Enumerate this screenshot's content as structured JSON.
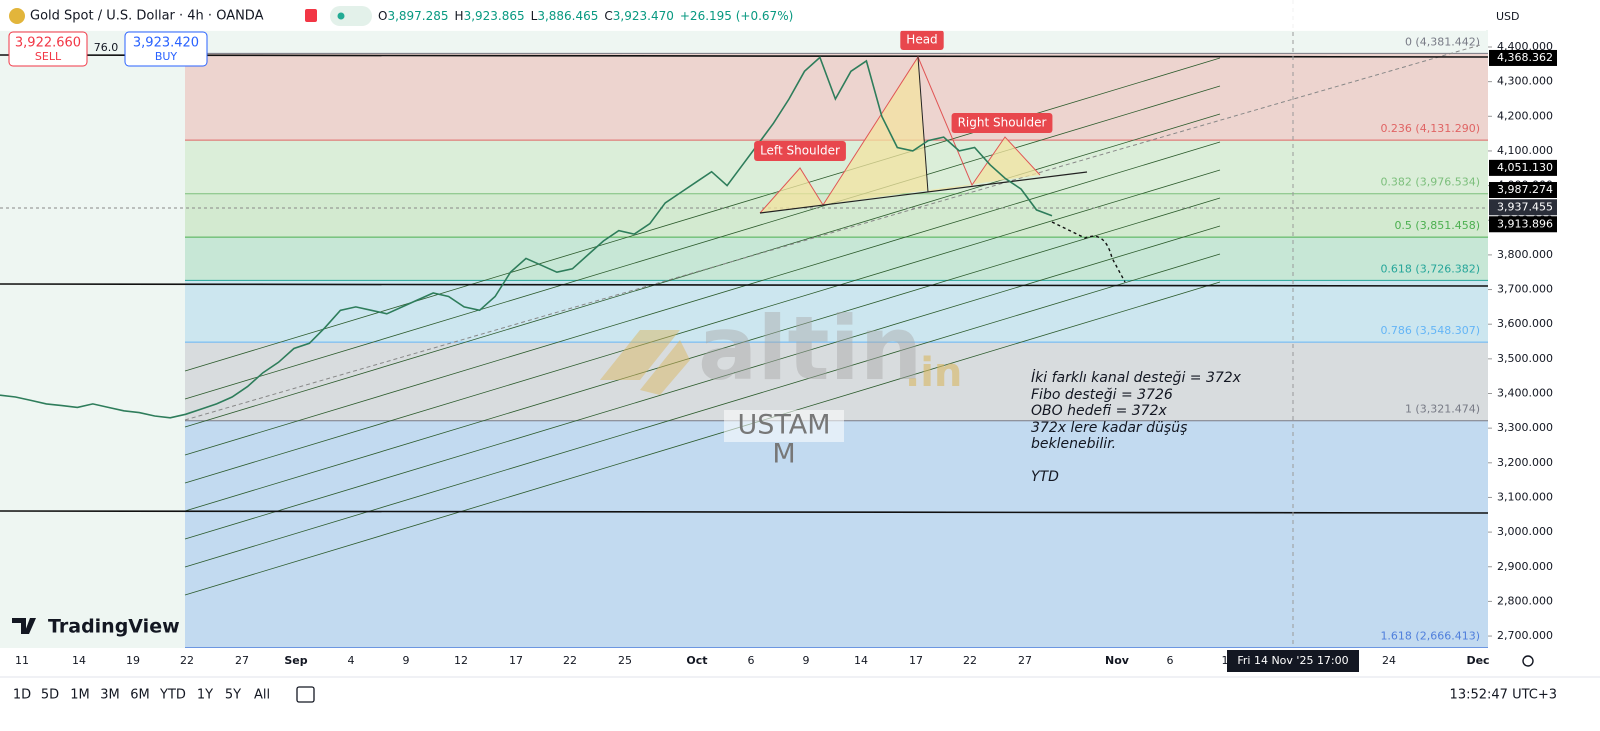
{
  "header": {
    "symbol": "Gold Spot / U.S. Dollar · 4h · OANDA",
    "ohlc": [
      {
        "label": "O",
        "value": "3,897.285"
      },
      {
        "label": "H",
        "value": "3,923.865"
      },
      {
        "label": "L",
        "value": "3,886.465"
      },
      {
        "label": "C",
        "value": "3,923.470"
      }
    ],
    "change": "+26.195 (+0.67%)"
  },
  "trade": {
    "sell_price": "3,922.660",
    "sell": "SELL",
    "spread": "76.0",
    "buy_price": "3,923.420",
    "buy": "BUY"
  },
  "currency": "USD",
  "price_axis": [
    {
      "value": 4400,
      "label": "4,400.000"
    },
    {
      "value": 4300,
      "label": "4,300.000"
    },
    {
      "value": 4200,
      "label": "4,200.000"
    },
    {
      "value": 4100,
      "label": "4,100.000"
    },
    {
      "value": 4000,
      "label": "4,000.000"
    },
    {
      "value": 3900,
      "label": "3,900.000"
    },
    {
      "value": 3800,
      "label": "3,800.000"
    },
    {
      "value": 3700,
      "label": "3,700.000"
    },
    {
      "value": 3600,
      "label": "3,600.000"
    },
    {
      "value": 3500,
      "label": "3,500.000"
    },
    {
      "value": 3400,
      "label": "3,400.000"
    },
    {
      "value": 3300,
      "label": "3,300.000"
    },
    {
      "value": 3200,
      "label": "3,200.000"
    },
    {
      "value": 3100,
      "label": "3,100.000"
    },
    {
      "value": 3000,
      "label": "3,000.000"
    },
    {
      "value": 2900,
      "label": "2,900.000"
    },
    {
      "value": 2800,
      "label": "2,800.000"
    },
    {
      "value": 2700,
      "label": "2,700.000"
    }
  ],
  "price_tags": [
    {
      "value": 4368.362,
      "label": "4,368.362"
    },
    {
      "value": 4051.13,
      "label": "4,051.130"
    },
    {
      "value": 3987.274,
      "label": "3,987.274"
    },
    {
      "value": 3937.455,
      "label": "3,937.455"
    },
    {
      "value": 3913.896,
      "label": "3,913.896"
    }
  ],
  "fib_levels": [
    {
      "value": 4381.442,
      "label": "0 (4,381.442)"
    },
    {
      "value": 4131.29,
      "label": "0.236 (4,131.290)"
    },
    {
      "value": 3976.534,
      "label": "0.382 (3,976.534)"
    },
    {
      "value": 3851.458,
      "label": "0.5 (3,851.458)"
    },
    {
      "value": 3726.382,
      "label": "0.618 (3,726.382)"
    },
    {
      "value": 3548.307,
      "label": "0.786 (3,548.307)"
    },
    {
      "value": 3321.474,
      "label": "1 (3,321.474)"
    },
    {
      "value": 2666.413,
      "label": "1.618 (2,666.413)"
    }
  ],
  "price_series": [
    3395,
    3390,
    3380,
    3370,
    3365,
    3360,
    3370,
    3360,
    3350,
    3345,
    3335,
    3330,
    3340,
    3355,
    3370,
    3390,
    3420,
    3460,
    3490,
    3530,
    3545,
    3590,
    3640,
    3650,
    3640,
    3630,
    3650,
    3670,
    3690,
    3680,
    3650,
    3640,
    3680,
    3750,
    3790,
    3770,
    3750,
    3760,
    3800,
    3840,
    3870,
    3860,
    3890,
    3950,
    3980,
    4010,
    4040,
    4000,
    4060,
    4120,
    4180,
    4250,
    4330,
    4370,
    4250,
    4330,
    4360,
    4200,
    4110,
    4100,
    4130,
    4140,
    4100,
    4110,
    4060,
    4020,
    3990,
    3930,
    3913
  ],
  "pattern_labels": {
    "head": "Head",
    "left_shoulder": "Left Shoulder",
    "right_shoulder": "Right Shoulder"
  },
  "note_lines": [
    "İki farklı kanal desteği = 372x",
    "Fibo desteği = 3726",
    "OBO hedefi = 372x",
    "372x lere kadar düşüş",
    "beklenebilir.",
    "YTD"
  ],
  "watermark": {
    "brand": "altin",
    "suffix": ".in",
    "line1": "USTAM",
    "line2": "M"
  },
  "logo": "TradingView",
  "time_axis": [
    "11",
    "14",
    "19",
    "22",
    "27",
    "Sep",
    "4",
    "9",
    "12",
    "17",
    "22",
    "25",
    "Oct",
    "6",
    "9",
    "14",
    "17",
    "22",
    "27",
    "Nov",
    "6",
    "1",
    "24",
    "Dec"
  ],
  "crosshair_date": "Fri 14 Nov '25   17:00",
  "range_buttons": [
    "1D",
    "5D",
    "1M",
    "3M",
    "6M",
    "YTD",
    "1Y",
    "5Y",
    "All"
  ],
  "clock": "13:52:47 UTC+3"
}
